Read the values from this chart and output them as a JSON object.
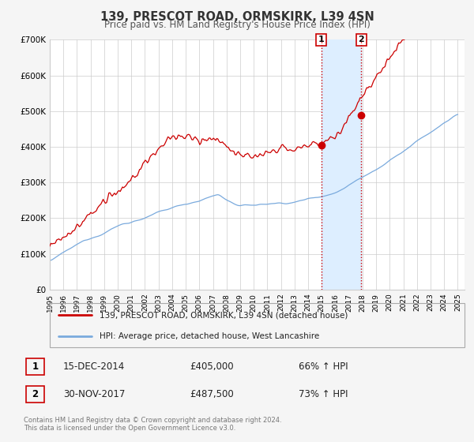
{
  "title": "139, PRESCOT ROAD, ORMSKIRK, L39 4SN",
  "subtitle": "Price paid vs. HM Land Registry's House Price Index (HPI)",
  "ylim": [
    0,
    700000
  ],
  "xlim": [
    1995.0,
    2025.5
  ],
  "yticks": [
    0,
    100000,
    200000,
    300000,
    400000,
    500000,
    600000,
    700000
  ],
  "ytick_labels": [
    "£0",
    "£100K",
    "£200K",
    "£300K",
    "£400K",
    "£500K",
    "£600K",
    "£700K"
  ],
  "xticks": [
    1995,
    1996,
    1997,
    1998,
    1999,
    2000,
    2001,
    2002,
    2003,
    2004,
    2005,
    2006,
    2007,
    2008,
    2009,
    2010,
    2011,
    2012,
    2013,
    2014,
    2015,
    2016,
    2017,
    2018,
    2019,
    2020,
    2021,
    2022,
    2023,
    2024,
    2025
  ],
  "red_color": "#cc0000",
  "blue_color": "#7aaadd",
  "shading_color": "#ddeeff",
  "sale1_x": 2014.958,
  "sale1_y": 405000,
  "sale2_x": 2017.917,
  "sale2_y": 487500,
  "legend_red_label": "139, PRESCOT ROAD, ORMSKIRK, L39 4SN (detached house)",
  "legend_blue_label": "HPI: Average price, detached house, West Lancashire",
  "sale1_date": "15-DEC-2014",
  "sale1_price": "£405,000",
  "sale1_hpi": "66% ↑ HPI",
  "sale2_date": "30-NOV-2017",
  "sale2_price": "£487,500",
  "sale2_hpi": "73% ↑ HPI",
  "footer1": "Contains HM Land Registry data © Crown copyright and database right 2024.",
  "footer2": "This data is licensed under the Open Government Licence v3.0.",
  "bg_color": "#f5f5f5",
  "plot_bg_color": "#ffffff"
}
